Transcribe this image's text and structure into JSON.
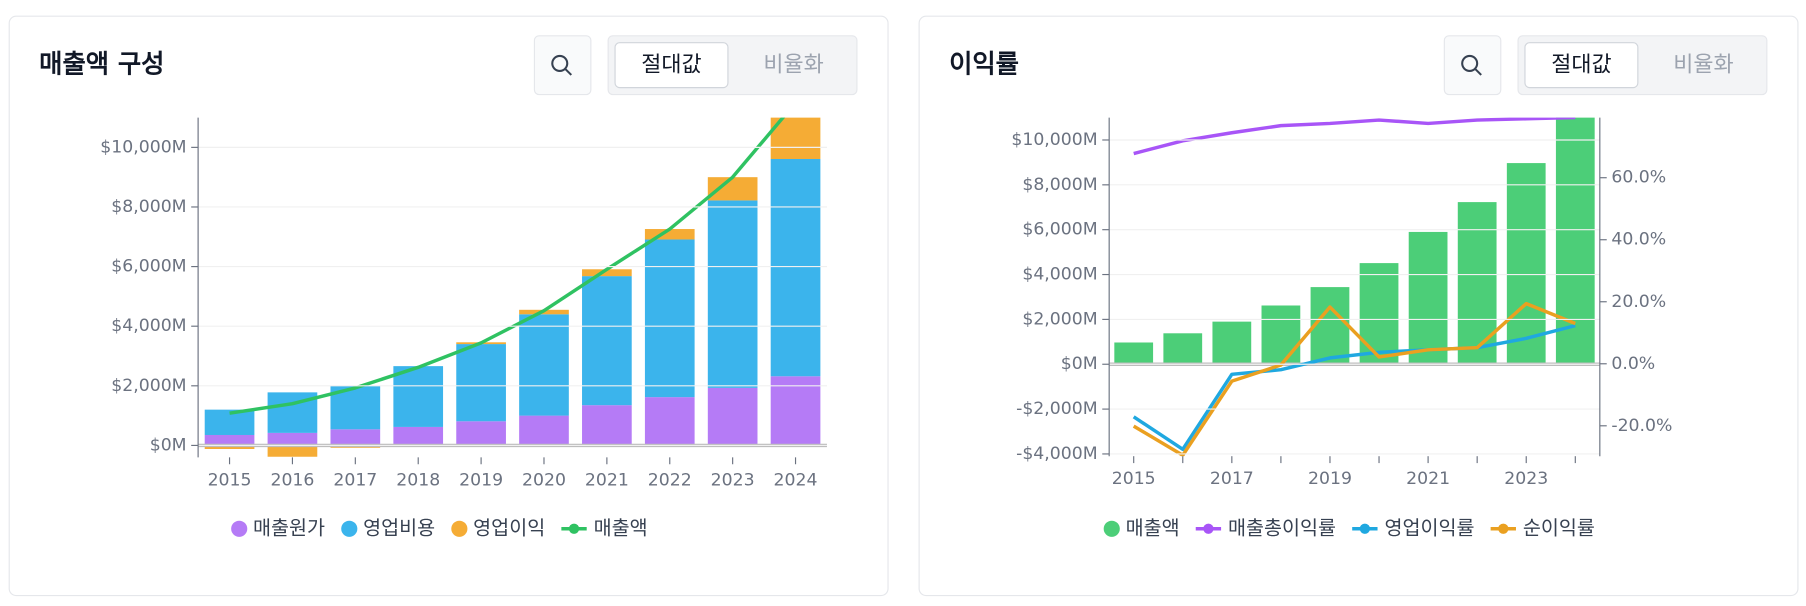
{
  "chart_data": [
    {
      "type": "bar",
      "title": "매출액 구성",
      "controls": [
        "절대값",
        "비율화"
      ],
      "stacked": true,
      "grid": true,
      "categories": [
        "2015",
        "2016",
        "2017",
        "2018",
        "2019",
        "2020",
        "2021",
        "2022",
        "2023",
        "2024"
      ],
      "ylim": [
        -400,
        11000
      ],
      "yticks": [
        {
          "value": 0,
          "label": "$0M"
        },
        {
          "value": 2000,
          "label": "$2,000M"
        },
        {
          "value": 4000,
          "label": "$4,000M"
        },
        {
          "value": 6000,
          "label": "$6,000M"
        },
        {
          "value": 8000,
          "label": "$8,000M"
        },
        {
          "value": 10000,
          "label": "$10,000M"
        }
      ],
      "series": [
        {
          "name": "매출원가",
          "type": "bar",
          "color": "#b57bf6",
          "values": [
            350,
            420,
            540,
            620,
            810,
            1000,
            1350,
            1620,
            1930,
            2320
          ]
        },
        {
          "name": "영업비용",
          "type": "bar",
          "color": "#3bb4ec",
          "values": [
            850,
            1360,
            1470,
            2040,
            2590,
            3400,
            4330,
            5290,
            6290,
            7290
          ]
        },
        {
          "name": "영업이익",
          "type": "bar",
          "color": "#f5ac35",
          "values": [
            -120,
            -380,
            -80,
            -40,
            60,
            150,
            230,
            350,
            780,
            1890
          ]
        },
        {
          "name": "매출액",
          "type": "line",
          "color": "#2fc262",
          "values": [
            1080,
            1400,
            1930,
            2620,
            3440,
            4520,
            5910,
            7260,
            9000,
            11500
          ]
        }
      ]
    },
    {
      "type": "bar",
      "title": "이익률",
      "controls": [
        "절대값",
        "비율화"
      ],
      "stacked": false,
      "grid": true,
      "categories": [
        "2015",
        null,
        "2017",
        null,
        "2019",
        null,
        "2021",
        null,
        "2023",
        null
      ],
      "ylim": [
        -4100,
        11000
      ],
      "yticks": [
        {
          "value": -4000,
          "label": "-$4,000M"
        },
        {
          "value": -2000,
          "label": "-$2,000M"
        },
        {
          "value": 0,
          "label": "$0M"
        },
        {
          "value": 2000,
          "label": "$2,000M"
        },
        {
          "value": 4000,
          "label": "$4,000M"
        },
        {
          "value": 6000,
          "label": "$6,000M"
        },
        {
          "value": 8000,
          "label": "$8,000M"
        },
        {
          "value": 10000,
          "label": "$10,000M"
        }
      ],
      "y2lim": [
        -29.8,
        79.4
      ],
      "y2ticks": [
        {
          "value": -20,
          "label": "-20.0%"
        },
        {
          "value": 0,
          "label": "0.0%"
        },
        {
          "value": 20,
          "label": "20.0%"
        },
        {
          "value": 40,
          "label": "40.0%"
        },
        {
          "value": 60,
          "label": "60.0%"
        }
      ],
      "series": [
        {
          "name": "매출액",
          "type": "bar",
          "color": "#4cce78",
          "values": [
            970,
            1380,
            1900,
            2620,
            3440,
            4510,
            5900,
            7230,
            8970,
            11500
          ]
        },
        {
          "name": "매출총이익률",
          "type": "line",
          "axis": "y2",
          "color": "#a855f7",
          "values": [
            67.8,
            71.9,
            74.5,
            76.8,
            77.5,
            78.6,
            77.5,
            78.6,
            79.0,
            79.4
          ]
        },
        {
          "name": "영업이익률",
          "type": "line",
          "axis": "y2",
          "color": "#1fa8e0",
          "values": [
            -17.1,
            -27.6,
            -3.4,
            -1.9,
            1.9,
            3.7,
            4.5,
            5.2,
            8.2,
            12.3
          ]
        },
        {
          "name": "순이익률",
          "type": "line",
          "axis": "y2",
          "color": "#eaa020",
          "values": [
            -20.1,
            -29.5,
            -5.6,
            -0.4,
            18.3,
            2.2,
            4.5,
            5.2,
            19.4,
            13.0
          ]
        }
      ]
    }
  ]
}
